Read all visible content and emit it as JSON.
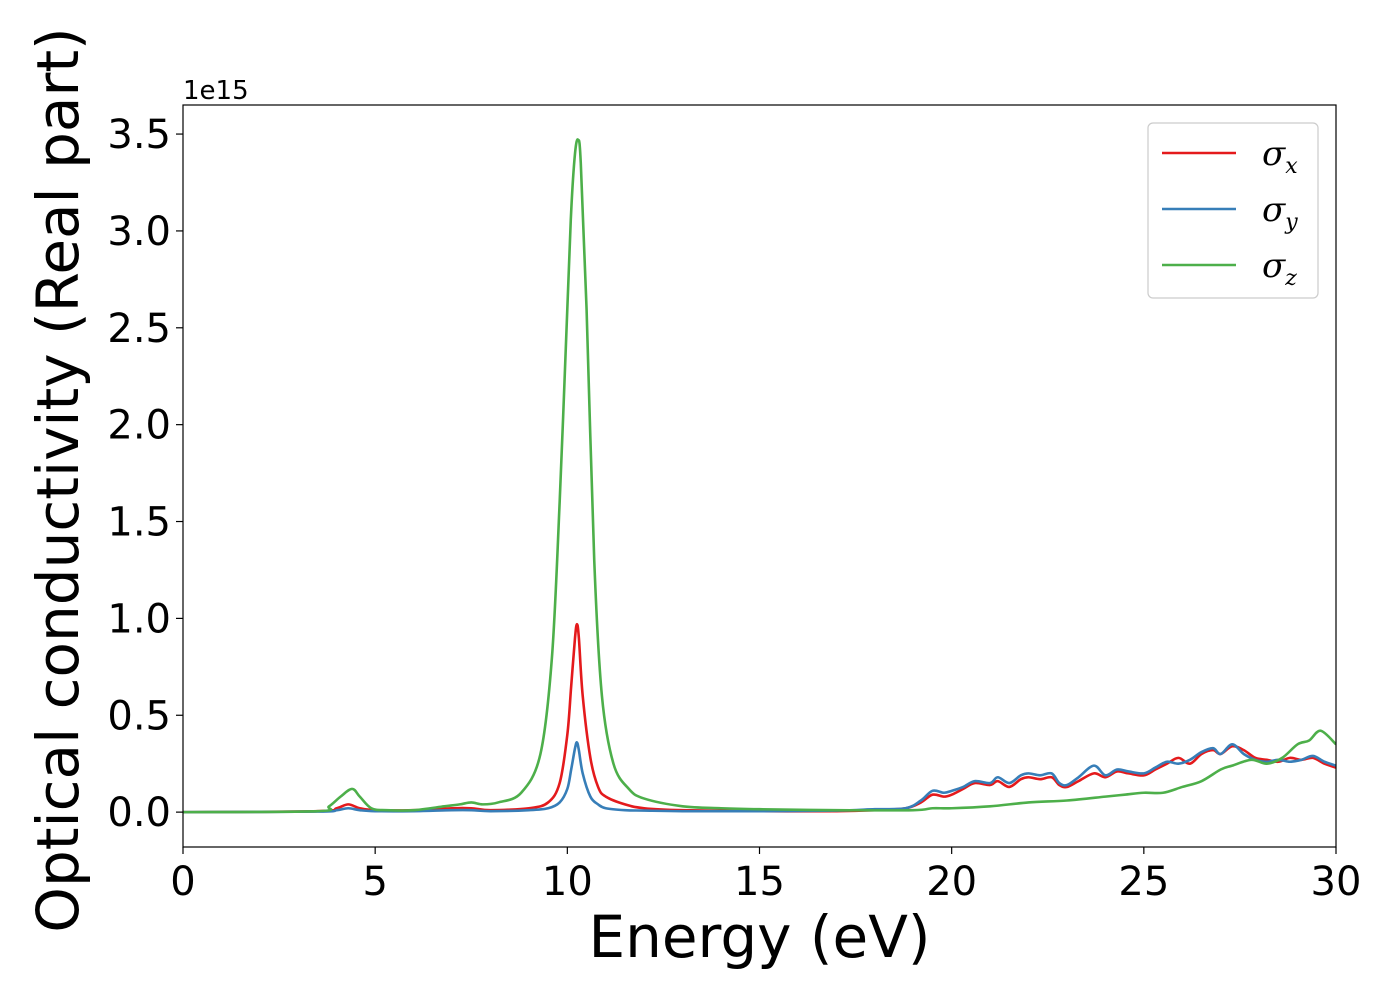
{
  "chart_data": {
    "type": "line",
    "xlabel": "Energy (eV)",
    "ylabel": "Optical conductivity (Real part)",
    "y_offset_label": "1e15",
    "xlim": [
      0,
      30
    ],
    "ylim": [
      -0.18,
      3.65
    ],
    "x_ticks": [
      0,
      5,
      10,
      15,
      20,
      25,
      30
    ],
    "y_ticks": [
      0.0,
      0.5,
      1.0,
      1.5,
      2.0,
      2.5,
      3.0,
      3.5
    ],
    "x_tick_labels": [
      "0",
      "5",
      "10",
      "15",
      "20",
      "25",
      "30"
    ],
    "y_tick_labels": [
      "0.0",
      "0.5",
      "1.0",
      "1.5",
      "2.0",
      "2.5",
      "3.0",
      "3.5"
    ],
    "legend_position": "top-right",
    "series": [
      {
        "name": "σx",
        "symbol": "σ",
        "subscript": "x",
        "color": "#e41a1c",
        "x": [
          0,
          3.5,
          4.0,
          4.3,
          4.6,
          5.0,
          6.0,
          7.0,
          7.5,
          8.0,
          9.0,
          9.5,
          9.8,
          10.0,
          10.1,
          10.2,
          10.25,
          10.3,
          10.4,
          10.6,
          10.8,
          11.0,
          11.5,
          12.0,
          13,
          15,
          17,
          18,
          18.8,
          19.2,
          19.5,
          19.8,
          20.0,
          20.3,
          20.6,
          21.0,
          21.2,
          21.5,
          21.8,
          22.0,
          22.3,
          22.6,
          22.8,
          23.0,
          23.3,
          23.7,
          24.0,
          24.3,
          24.6,
          25.0,
          25.3,
          25.6,
          25.9,
          26.2,
          26.5,
          26.8,
          27.0,
          27.3,
          27.6,
          27.9,
          28.2,
          28.5,
          28.8,
          29.1,
          29.4,
          29.7,
          30.0
        ],
        "y": [
          0.0,
          0.005,
          0.02,
          0.04,
          0.02,
          0.01,
          0.01,
          0.02,
          0.02,
          0.01,
          0.02,
          0.05,
          0.15,
          0.4,
          0.65,
          0.9,
          0.97,
          0.9,
          0.6,
          0.28,
          0.13,
          0.08,
          0.04,
          0.02,
          0.01,
          0.005,
          0.005,
          0.01,
          0.02,
          0.05,
          0.09,
          0.08,
          0.09,
          0.12,
          0.15,
          0.14,
          0.16,
          0.13,
          0.17,
          0.18,
          0.17,
          0.18,
          0.14,
          0.13,
          0.16,
          0.2,
          0.18,
          0.21,
          0.2,
          0.19,
          0.22,
          0.25,
          0.28,
          0.25,
          0.3,
          0.32,
          0.3,
          0.34,
          0.32,
          0.28,
          0.27,
          0.26,
          0.28,
          0.27,
          0.28,
          0.25,
          0.23
        ]
      },
      {
        "name": "σy",
        "symbol": "σ",
        "subscript": "y",
        "color": "#377eb8",
        "x": [
          0,
          3.5,
          4.0,
          4.3,
          4.6,
          5.0,
          6.0,
          7.0,
          7.5,
          8.0,
          9.0,
          9.5,
          9.8,
          10.0,
          10.1,
          10.2,
          10.25,
          10.3,
          10.4,
          10.6,
          10.8,
          11.0,
          11.5,
          12.0,
          13,
          15,
          17,
          18,
          18.8,
          19.2,
          19.5,
          19.8,
          20.0,
          20.3,
          20.6,
          21.0,
          21.2,
          21.5,
          21.8,
          22.0,
          22.3,
          22.6,
          22.8,
          23.0,
          23.3,
          23.7,
          24.0,
          24.3,
          24.6,
          25.0,
          25.3,
          25.6,
          25.9,
          26.2,
          26.5,
          26.8,
          27.0,
          27.3,
          27.6,
          27.9,
          28.2,
          28.5,
          28.8,
          29.1,
          29.4,
          29.7,
          30.0
        ],
        "y": [
          0.0,
          0.003,
          0.01,
          0.02,
          0.01,
          0.005,
          0.005,
          0.01,
          0.01,
          0.005,
          0.01,
          0.02,
          0.05,
          0.12,
          0.22,
          0.33,
          0.36,
          0.32,
          0.2,
          0.08,
          0.04,
          0.02,
          0.01,
          0.008,
          0.005,
          0.005,
          0.008,
          0.015,
          0.02,
          0.06,
          0.11,
          0.1,
          0.11,
          0.13,
          0.16,
          0.15,
          0.18,
          0.15,
          0.19,
          0.2,
          0.19,
          0.2,
          0.15,
          0.14,
          0.18,
          0.24,
          0.19,
          0.22,
          0.21,
          0.2,
          0.23,
          0.26,
          0.25,
          0.27,
          0.31,
          0.33,
          0.3,
          0.35,
          0.3,
          0.27,
          0.26,
          0.27,
          0.26,
          0.27,
          0.29,
          0.26,
          0.24
        ]
      },
      {
        "name": "σz",
        "symbol": "σ",
        "subscript": "z",
        "color": "#4daf4a",
        "x": [
          0,
          3.5,
          3.8,
          4.1,
          4.4,
          4.6,
          4.9,
          5.3,
          6.0,
          6.8,
          7.2,
          7.5,
          7.8,
          8.2,
          8.8,
          9.3,
          9.6,
          9.8,
          10.0,
          10.1,
          10.2,
          10.28,
          10.35,
          10.5,
          10.7,
          10.9,
          11.2,
          11.6,
          12.0,
          13,
          14,
          15,
          17,
          19,
          19.5,
          20,
          21,
          22,
          23,
          24,
          24.5,
          25,
          25.5,
          26,
          26.5,
          27,
          27.3,
          27.8,
          28.2,
          28.6,
          29.0,
          29.3,
          29.6,
          30.0
        ],
        "y": [
          0.0,
          0.005,
          0.03,
          0.08,
          0.12,
          0.08,
          0.02,
          0.01,
          0.01,
          0.03,
          0.04,
          0.05,
          0.04,
          0.05,
          0.1,
          0.3,
          0.8,
          1.6,
          2.6,
          3.1,
          3.4,
          3.47,
          3.35,
          2.6,
          1.3,
          0.6,
          0.25,
          0.12,
          0.07,
          0.03,
          0.02,
          0.015,
          0.01,
          0.01,
          0.02,
          0.02,
          0.03,
          0.05,
          0.06,
          0.08,
          0.09,
          0.1,
          0.1,
          0.13,
          0.16,
          0.22,
          0.24,
          0.27,
          0.25,
          0.28,
          0.35,
          0.37,
          0.42,
          0.35
        ]
      }
    ]
  }
}
